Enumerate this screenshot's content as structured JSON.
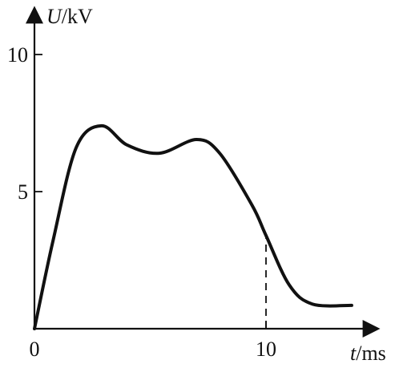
{
  "chart_data": {
    "type": "line",
    "title": "",
    "xlabel": {
      "symbol": "t",
      "unit": "/ms"
    },
    "ylabel": {
      "symbol": "U",
      "unit": "/kV"
    },
    "xlim": [
      0,
      14
    ],
    "ylim": [
      0,
      11.5
    ],
    "x_ticks": [
      "0",
      "10"
    ],
    "y_ticks": [
      "5",
      "10"
    ],
    "grid": false,
    "series": [
      {
        "points": [
          [
            0,
            0
          ],
          [
            0.8,
            3.2
          ],
          [
            1.8,
            6.6
          ],
          [
            2.9,
            7.4
          ],
          [
            4.0,
            6.7
          ],
          [
            5.4,
            6.4
          ],
          [
            7.0,
            6.9
          ],
          [
            8.0,
            6.4
          ],
          [
            9.4,
            4.5
          ],
          [
            10.0,
            3.4
          ],
          [
            11.0,
            1.6
          ],
          [
            12.0,
            0.9
          ],
          [
            13.7,
            0.85
          ]
        ]
      }
    ],
    "annotations": [
      {
        "type": "dashed-vertical",
        "x": 10,
        "y_from": 0,
        "y_to": 3.4
      }
    ]
  }
}
